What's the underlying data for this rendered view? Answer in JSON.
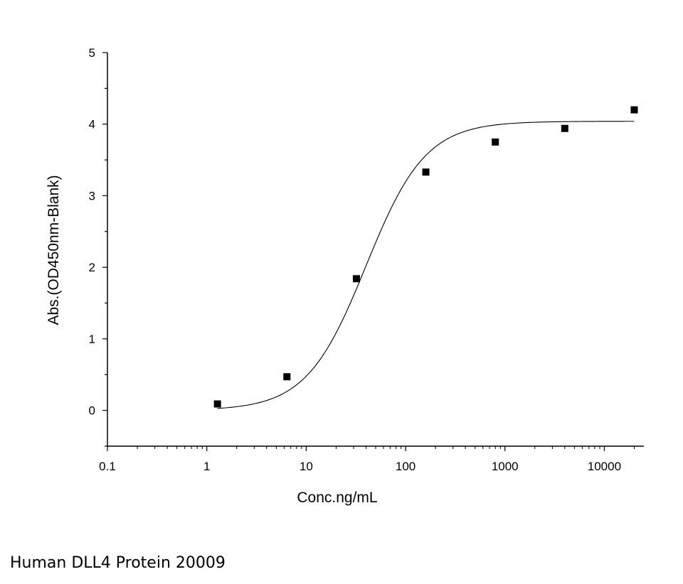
{
  "chart_data": {
    "type": "scatter",
    "xscale": "log",
    "xlim": [
      0.1,
      25000
    ],
    "ylim": [
      -0.5,
      5
    ],
    "xlabel": "Conc.ng/mL",
    "ylabel": "Abs.(OD450nm-Blank)",
    "x_ticks": [
      {
        "value": 0.1,
        "label": "0.1"
      },
      {
        "value": 1,
        "label": "1"
      },
      {
        "value": 10,
        "label": "10"
      },
      {
        "value": 100,
        "label": "100"
      },
      {
        "value": 1000,
        "label": "1000"
      },
      {
        "value": 10000,
        "label": "10000"
      }
    ],
    "y_ticks": [
      {
        "value": 0,
        "label": "0"
      },
      {
        "value": 1,
        "label": "1"
      },
      {
        "value": 2,
        "label": "2"
      },
      {
        "value": 3,
        "label": "3"
      },
      {
        "value": 4,
        "label": "4"
      },
      {
        "value": 5,
        "label": "5"
      }
    ],
    "points": [
      {
        "x": 1.28,
        "y": 0.09
      },
      {
        "x": 6.4,
        "y": 0.47
      },
      {
        "x": 32,
        "y": 1.84
      },
      {
        "x": 160,
        "y": 3.33
      },
      {
        "x": 800,
        "y": 3.75
      },
      {
        "x": 4000,
        "y": 3.94
      },
      {
        "x": 20000,
        "y": 4.2
      }
    ],
    "fit": {
      "type": "4PL",
      "bottom": 0.0,
      "top": 4.04,
      "ec50": 40,
      "hill": 1.45,
      "x_range": [
        1.28,
        20000
      ]
    },
    "grid": false,
    "legend": "none"
  },
  "caption": "Human DLL4 Protein 20009"
}
